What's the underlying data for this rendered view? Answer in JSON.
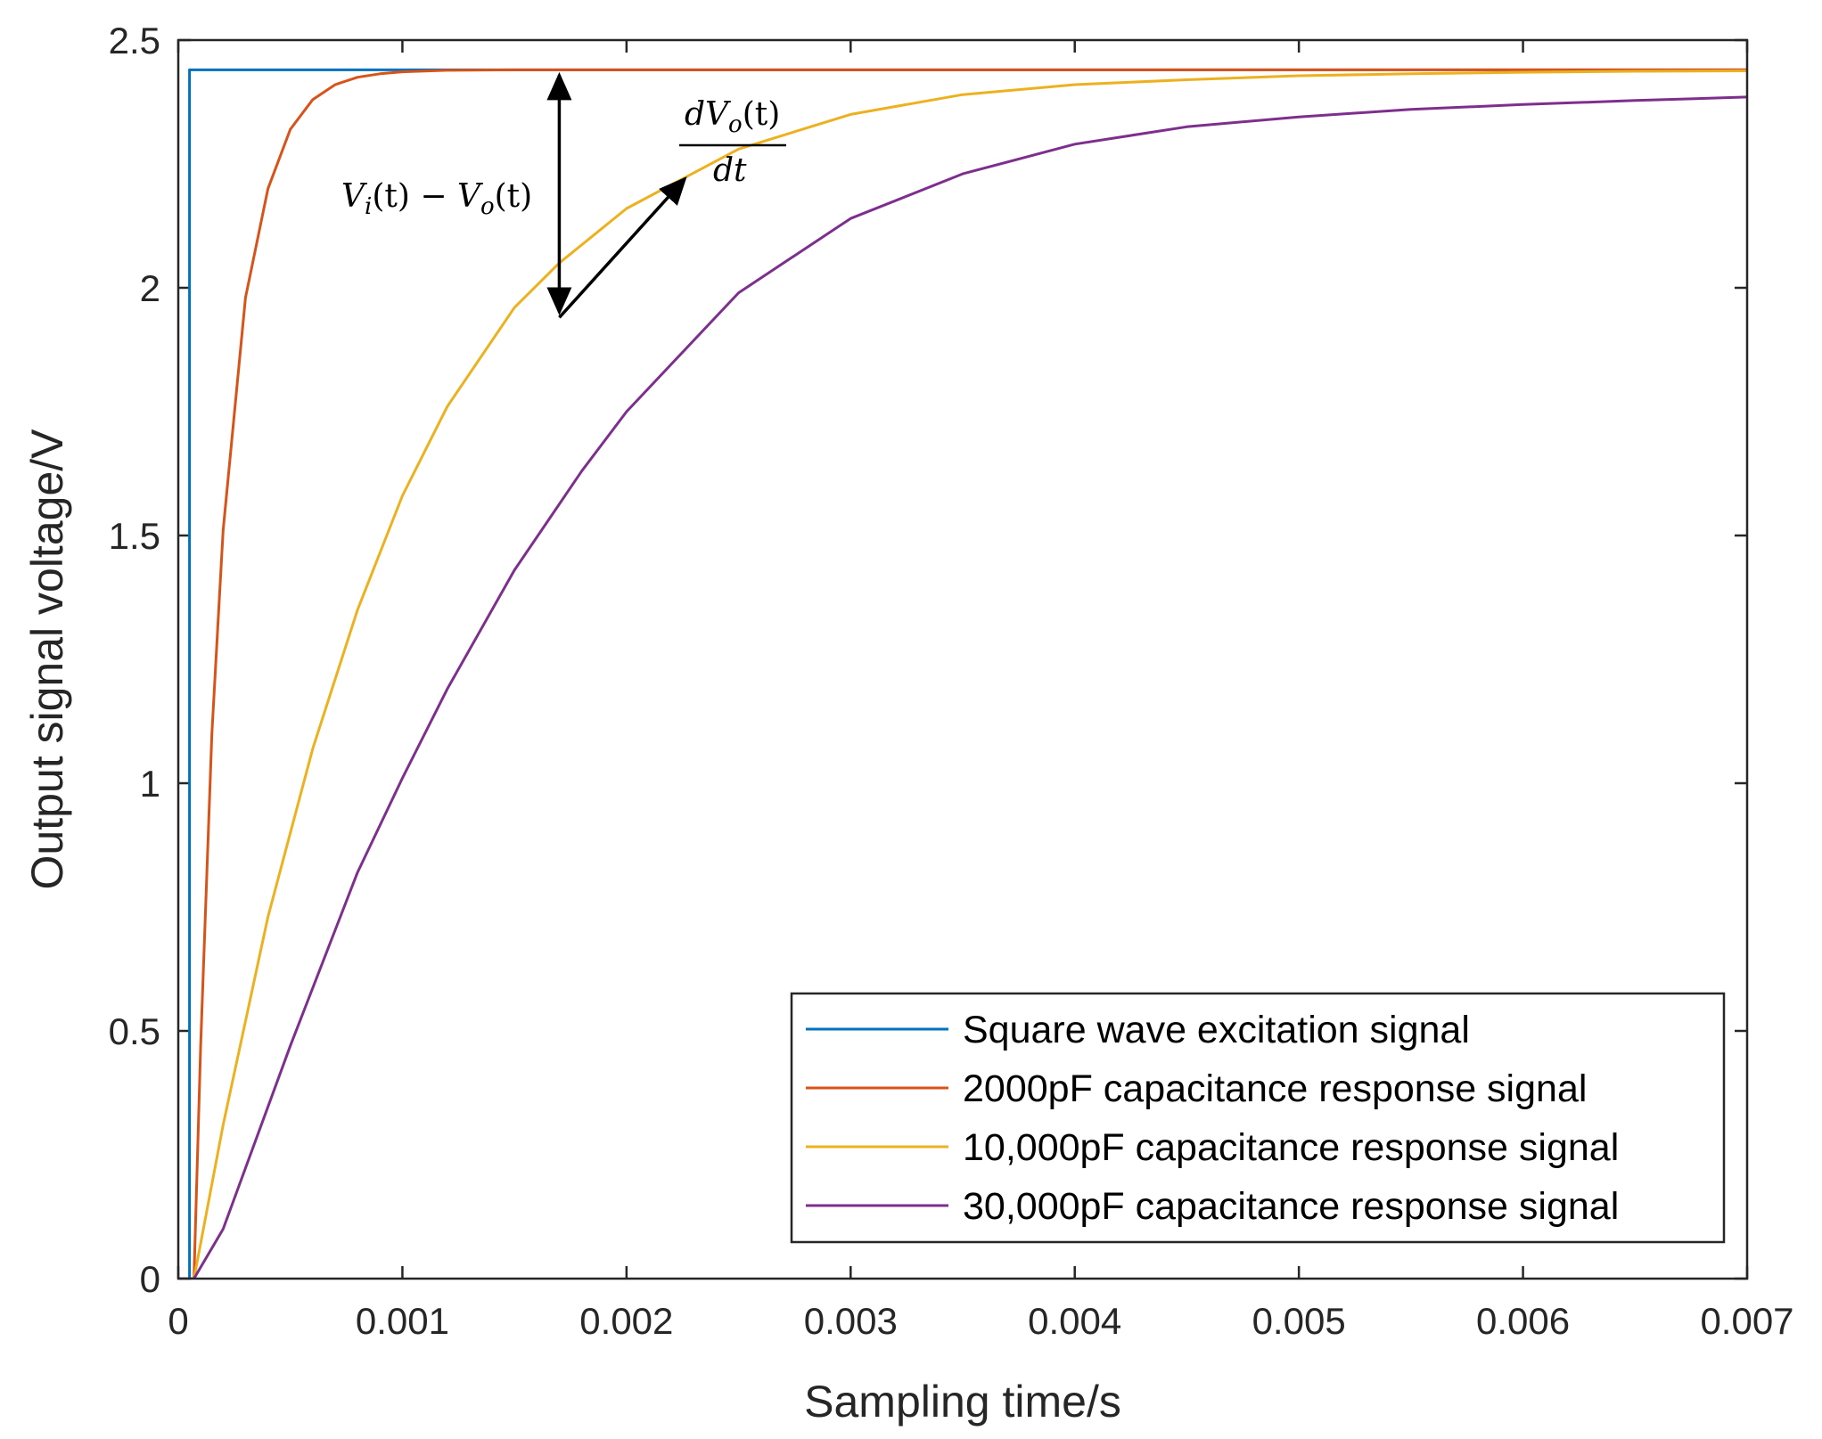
{
  "chart_data": {
    "type": "line",
    "xlabel": "Sampling time/s",
    "ylabel": "Output signal voltage/V",
    "xlim": [
      0,
      0.007
    ],
    "ylim": [
      0,
      2.5
    ],
    "xticks": [
      0,
      0.001,
      0.002,
      0.003,
      0.004,
      0.005,
      0.006,
      0.007
    ],
    "xtick_labels": [
      "0",
      "0.001",
      "0.002",
      "0.003",
      "0.004",
      "0.005",
      "0.006",
      "0.007"
    ],
    "yticks": [
      0,
      0.5,
      1,
      1.5,
      2,
      2.5
    ],
    "ytick_labels": [
      "0",
      "0.5",
      "1",
      "1.5",
      "2",
      "2.5"
    ],
    "legend_position": "bottom-right",
    "series": [
      {
        "name": "Square wave excitation signal",
        "color": "#0072BD",
        "x": [
          0,
          5e-05,
          5e-05,
          7e-05,
          0.007
        ],
        "y": [
          0,
          0,
          2.44,
          2.44,
          2.44
        ]
      },
      {
        "name": "2000pF capacitance response signal",
        "color": "#D95319",
        "x": [
          0,
          7e-05,
          0.0001,
          0.00015,
          0.0002,
          0.0003,
          0.0004,
          0.0005,
          0.0006,
          0.0007,
          0.0008,
          0.0009,
          0.001,
          0.0012,
          0.0015,
          0.002,
          0.003,
          0.005,
          0.007
        ],
        "y": [
          0,
          0,
          0.47,
          1.1,
          1.51,
          1.98,
          2.2,
          2.32,
          2.38,
          2.41,
          2.425,
          2.432,
          2.436,
          2.439,
          2.44,
          2.44,
          2.44,
          2.44,
          2.44
        ]
      },
      {
        "name": "10,000pF capacitance response signal",
        "color": "#EDB120",
        "x": [
          0,
          7e-05,
          0.0002,
          0.0004,
          0.0006,
          0.0008,
          0.001,
          0.0012,
          0.0015,
          0.0017,
          0.002,
          0.0025,
          0.003,
          0.0035,
          0.004,
          0.0045,
          0.005,
          0.0055,
          0.006,
          0.0065,
          0.007
        ],
        "y": [
          0,
          0,
          0.31,
          0.73,
          1.07,
          1.35,
          1.58,
          1.76,
          1.96,
          2.05,
          2.16,
          2.28,
          2.35,
          2.39,
          2.41,
          2.42,
          2.428,
          2.432,
          2.435,
          2.437,
          2.438
        ]
      },
      {
        "name": "30,000pF capacitance response signal",
        "color": "#7E2F8E",
        "x": [
          0,
          7e-05,
          0.0002,
          0.0005,
          0.0008,
          0.001,
          0.0012,
          0.0015,
          0.0018,
          0.002,
          0.0025,
          0.003,
          0.0035,
          0.004,
          0.0045,
          0.005,
          0.0055,
          0.006,
          0.0065,
          0.007
        ],
        "y": [
          0,
          0,
          0.1,
          0.47,
          0.82,
          1.01,
          1.19,
          1.43,
          1.63,
          1.75,
          1.99,
          2.14,
          2.23,
          2.29,
          2.325,
          2.345,
          2.36,
          2.37,
          2.378,
          2.385
        ]
      }
    ],
    "annotations": [
      {
        "text": "Vi(t) − Vo(t)",
        "type": "double-arrow",
        "x": 0.0017,
        "y_from": 1.94,
        "y_to": 2.44
      },
      {
        "text": "dVo(t)/dt",
        "type": "arrow",
        "x_from": 0.0017,
        "y_from": 1.94,
        "x_to": 0.00226,
        "y_to": 2.22
      }
    ]
  },
  "annotation_text": {
    "diff_V1": "V",
    "diff_i": "i",
    "diff_mid": "(t) − ",
    "diff_V2": "V",
    "diff_o": "o",
    "diff_end": "(t)",
    "deriv_num_d": "dV",
    "deriv_num_o": "o",
    "deriv_num_t": "(t)",
    "deriv_den": "dt"
  }
}
